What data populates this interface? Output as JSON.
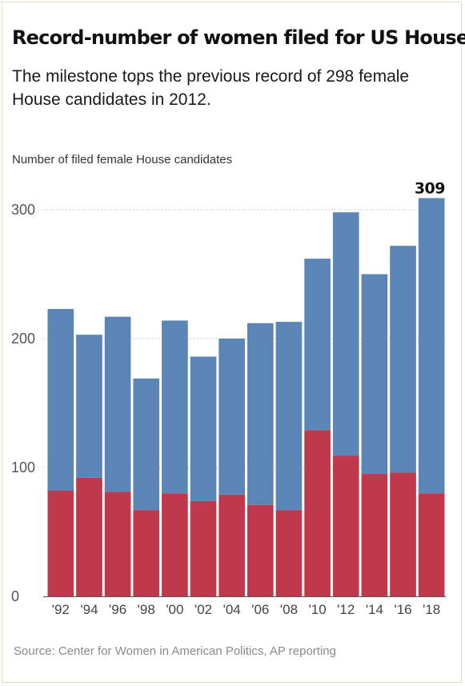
{
  "header": {
    "title": "Record-number of women filed for US House",
    "subtitle": "The milestone tops the previous record of 298 female House candidates in 2012."
  },
  "footer": {
    "source": "Source: Center for Women in American Politics,  AP reporting"
  },
  "colors": {
    "series_a": "#c0384c",
    "series_b": "#5b85b6",
    "grid": "#cccccc",
    "baseline": "#555555"
  },
  "chart_data": {
    "type": "bar",
    "stacked": true,
    "ylabel": "Number of filed female House candidates",
    "categories": [
      "'92",
      "'94",
      "'96",
      "'98",
      "'00",
      "'02",
      "'04",
      "'06",
      "'08",
      "'10",
      "'12",
      "'14",
      "'16",
      "'18"
    ],
    "series": [
      {
        "values": [
          82,
          92,
          81,
          67,
          80,
          74,
          79,
          71,
          67,
          129,
          109,
          95,
          96,
          80
        ]
      },
      {
        "values": [
          141,
          111,
          136,
          102,
          134,
          112,
          121,
          141,
          146,
          133,
          189,
          155,
          176,
          229
        ]
      }
    ],
    "totals": [
      223,
      203,
      217,
      169,
      214,
      186,
      200,
      212,
      213,
      262,
      298,
      250,
      272,
      309
    ],
    "ylim": [
      0,
      309
    ],
    "yticks": [
      0,
      100,
      200,
      300
    ],
    "grid": true,
    "annotations": [
      {
        "category": "'18",
        "text": "309"
      }
    ]
  }
}
